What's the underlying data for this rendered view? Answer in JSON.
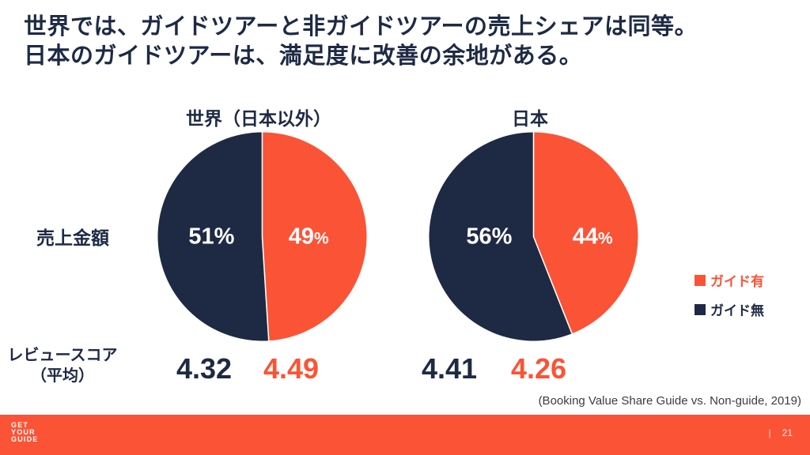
{
  "slide": {
    "title_line1": "世界では、ガイドツアーと非ガイドツアーの売上シェアは同等。",
    "title_line2": "日本のガイドツアーは、満足度に改善の余地がある。",
    "row_labels": {
      "sales": "売上金額",
      "review_line1": "レビュースコア",
      "review_line2": "（平均）"
    },
    "source": "(Booking Value Share Guide vs. Non-guide, 2019)",
    "footer": {
      "logo_line1": "GET",
      "logo_line2": "YOUR",
      "logo_line3": "GUIDE",
      "separator": "|",
      "page_number": "21"
    }
  },
  "colors": {
    "guided_orange": "#FB5336",
    "non_guided_navy": "#1E2A44",
    "title_text": "#1E2A44",
    "footer_bg": "#FB5336",
    "pie_label_text": "#FFFFFF",
    "source_text": "#3C3C3C"
  },
  "legend": [
    {
      "key": "guided",
      "label": "ガイド有",
      "color": "#FB5336"
    },
    {
      "key": "non_guided",
      "label": "ガイド無",
      "color": "#1E2A44"
    }
  ],
  "chart_data": [
    {
      "type": "pie",
      "title": "世界（日本以外）",
      "start_angle_deg": 0,
      "direction": "clockwise",
      "slices": [
        {
          "key": "guided",
          "name": "ガイド有",
          "value": 49,
          "label_number": "49",
          "label_suffix": "%",
          "color": "#FB5336"
        },
        {
          "key": "non_guided",
          "name": "ガイド無",
          "value": 51,
          "label_number": "51",
          "label_suffix": "%",
          "color": "#1E2A44"
        }
      ],
      "review_scores": {
        "non_guided": "4.32",
        "guided": "4.49"
      }
    },
    {
      "type": "pie",
      "title": "日本",
      "start_angle_deg": 0,
      "direction": "clockwise",
      "slices": [
        {
          "key": "guided",
          "name": "ガイド有",
          "value": 44,
          "label_number": "44",
          "label_suffix": "%",
          "color": "#FB5336"
        },
        {
          "key": "non_guided",
          "name": "ガイド無",
          "value": 56,
          "label_number": "56",
          "label_suffix": "%",
          "color": "#1E2A44"
        }
      ],
      "review_scores": {
        "non_guided": "4.41",
        "guided": "4.26"
      }
    }
  ]
}
